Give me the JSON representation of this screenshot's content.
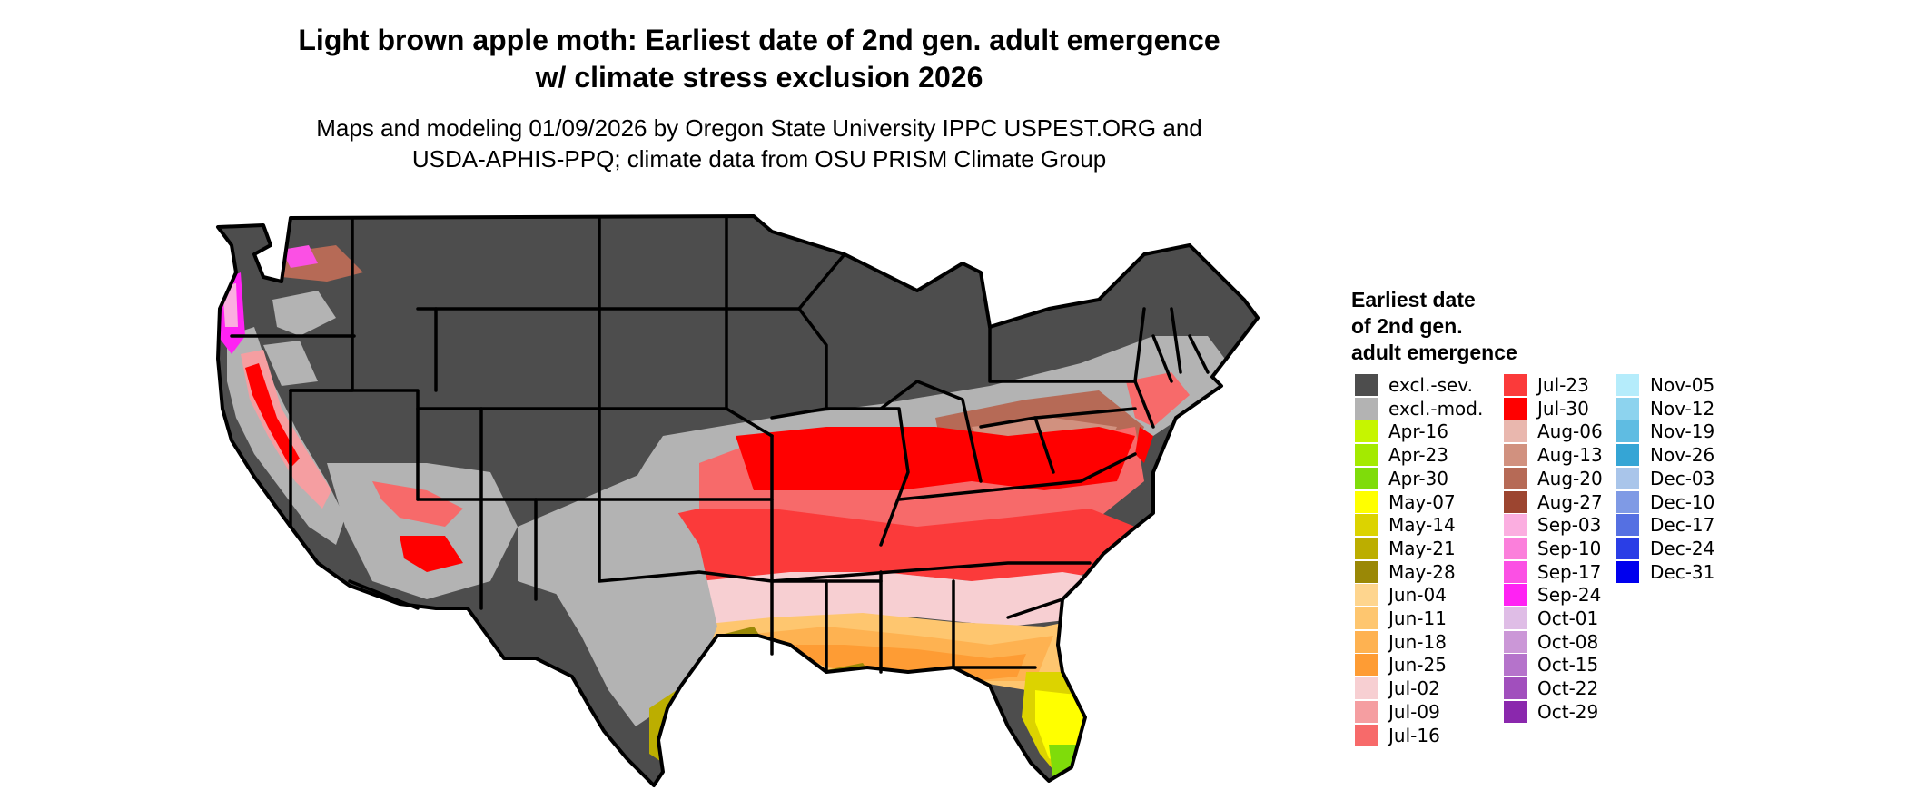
{
  "title_line1": "Light brown apple moth: Earliest date of 2nd gen. adult emergence",
  "title_line2": "w/ climate stress exclusion 2026",
  "subtitle_line1": "Maps and modeling 01/09/2026 by Oregon State University IPPC USPEST.ORG and",
  "subtitle_line2": "USDA-APHIS-PPQ; climate data from OSU PRISM Climate Group",
  "legend": {
    "title_line1": "Earliest date",
    "title_line2": "of 2nd gen.",
    "title_line3": "adult emergence",
    "items": [
      {
        "label": "excl.-sev.",
        "color": "#4d4d4d"
      },
      {
        "label": "excl.-mod.",
        "color": "#b3b3b3"
      },
      {
        "label": "Apr-16",
        "color": "#c6f500"
      },
      {
        "label": "Apr-23",
        "color": "#a4ea00"
      },
      {
        "label": "Apr-30",
        "color": "#7fdc0a"
      },
      {
        "label": "May-07",
        "color": "#ffff00"
      },
      {
        "label": "May-14",
        "color": "#dcd300"
      },
      {
        "label": "May-21",
        "color": "#bcae00"
      },
      {
        "label": "May-28",
        "color": "#9a8806"
      },
      {
        "label": "Jun-04",
        "color": "#fed58e"
      },
      {
        "label": "Jun-11",
        "color": "#fec66f"
      },
      {
        "label": "Jun-18",
        "color": "#feb251"
      },
      {
        "label": "Jun-25",
        "color": "#fe9c34"
      },
      {
        "label": "Jul-02",
        "color": "#f7cfd2"
      },
      {
        "label": "Jul-09",
        "color": "#f59ea1"
      },
      {
        "label": "Jul-16",
        "color": "#f76a6a"
      },
      {
        "label": "Jul-23",
        "color": "#fb3a3a"
      },
      {
        "label": "Jul-30",
        "color": "#ff0000"
      },
      {
        "label": "Aug-06",
        "color": "#e9b7ae"
      },
      {
        "label": "Aug-13",
        "color": "#d1917f"
      },
      {
        "label": "Aug-20",
        "color": "#b66a56"
      },
      {
        "label": "Aug-27",
        "color": "#9c4530"
      },
      {
        "label": "Sep-03",
        "color": "#fbaee0"
      },
      {
        "label": "Sep-10",
        "color": "#fb7fdb"
      },
      {
        "label": "Sep-17",
        "color": "#fb50e4"
      },
      {
        "label": "Sep-24",
        "color": "#ff22f3"
      },
      {
        "label": "Oct-01",
        "color": "#dfbde6"
      },
      {
        "label": "Oct-08",
        "color": "#cb97d7"
      },
      {
        "label": "Oct-15",
        "color": "#b573cb"
      },
      {
        "label": "Oct-22",
        "color": "#a14fbd"
      },
      {
        "label": "Oct-29",
        "color": "#8a28ad"
      },
      {
        "label": "Nov-05",
        "color": "#b5ecfb"
      },
      {
        "label": "Nov-12",
        "color": "#8dd3ee"
      },
      {
        "label": "Nov-19",
        "color": "#5fbce2"
      },
      {
        "label": "Nov-26",
        "color": "#35a5d5"
      },
      {
        "label": "Dec-03",
        "color": "#a9c5ea"
      },
      {
        "label": "Dec-10",
        "color": "#7f9ae5"
      },
      {
        "label": "Dec-17",
        "color": "#5570e2"
      },
      {
        "label": "Dec-24",
        "color": "#2a3ee6"
      },
      {
        "label": "Dec-31",
        "color": "#0000ee"
      }
    ]
  }
}
